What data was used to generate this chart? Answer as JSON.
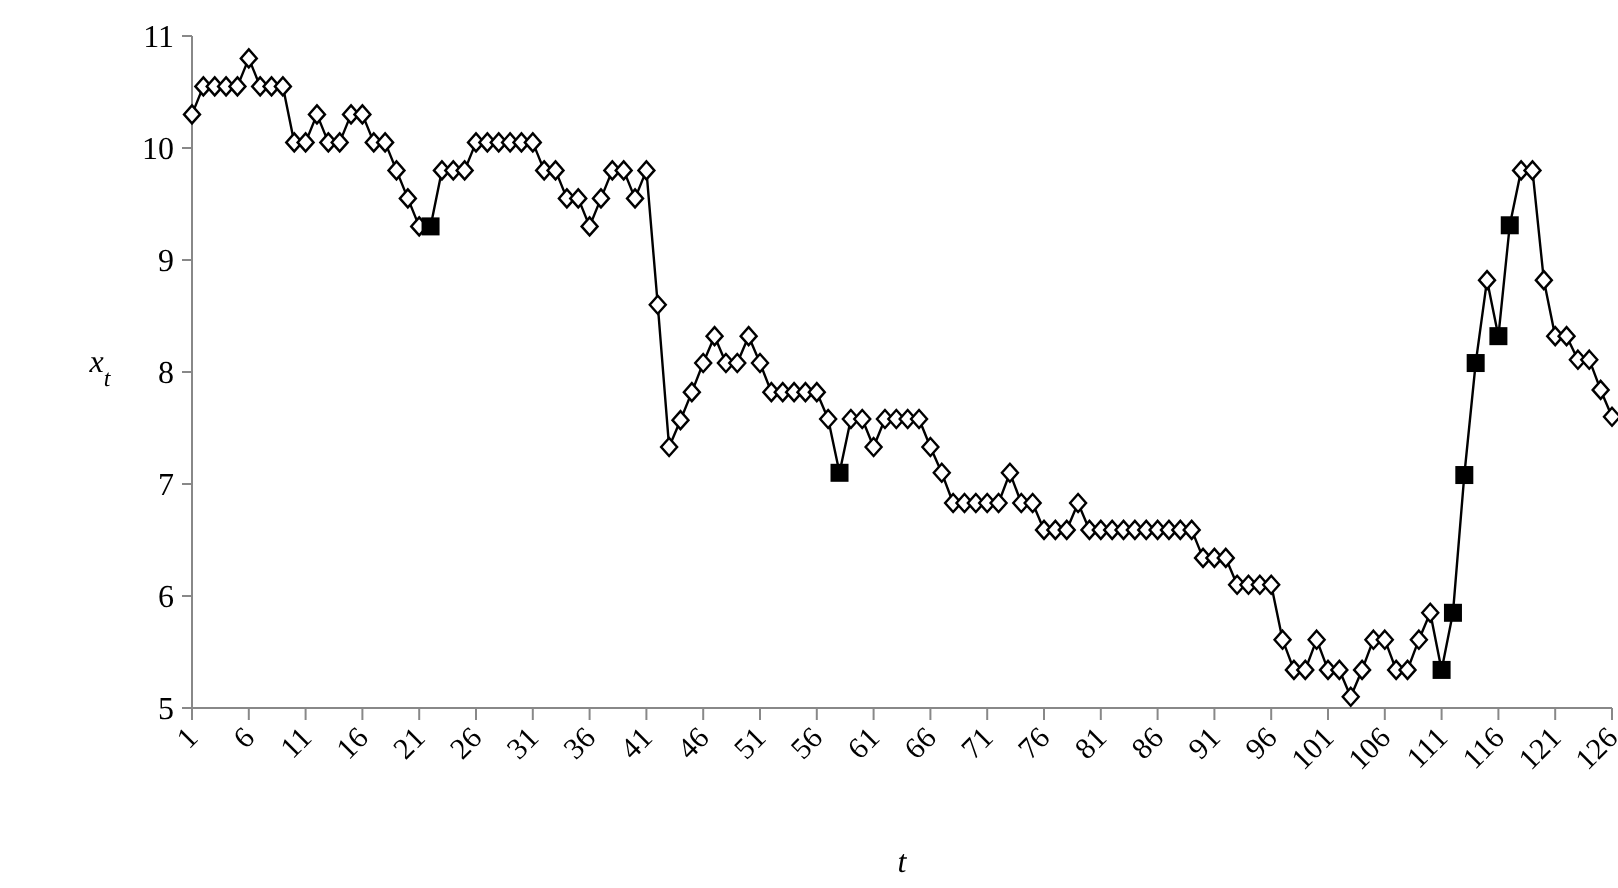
{
  "chart_data": {
    "type": "line",
    "xlabel": "t",
    "ylabel": "x$_{t}$",
    "xlim": [
      1,
      126
    ],
    "xticks": [
      1,
      6,
      11,
      16,
      21,
      26,
      31,
      36,
      41,
      46,
      51,
      56,
      61,
      66,
      71,
      76,
      81,
      86,
      91,
      96,
      101,
      106,
      111,
      116,
      121,
      126
    ],
    "ylim": [
      5,
      11
    ],
    "yticks": [
      5,
      6,
      7,
      8,
      9,
      10,
      11
    ],
    "grid": false,
    "line_style": "solid",
    "series": [
      {
        "type": "line",
        "color": "#000000",
        "marker": "diamond",
        "x": [
          1,
          2,
          3,
          4,
          5,
          6,
          7,
          8,
          9,
          10,
          11,
          12,
          13,
          14,
          15,
          16,
          17,
          18,
          19,
          20,
          21,
          22,
          23,
          24,
          25,
          26,
          27,
          28,
          29,
          30,
          31,
          32,
          33,
          34,
          35,
          36,
          37,
          38,
          39,
          40,
          41,
          42,
          43,
          44,
          45,
          46,
          47,
          48,
          49,
          50,
          51,
          52,
          53,
          54,
          55,
          56,
          57,
          58,
          59,
          60,
          61,
          62,
          63,
          64,
          65,
          66,
          67,
          68,
          69,
          70,
          71,
          72,
          73,
          74,
          75,
          76,
          77,
          78,
          79,
          80,
          81,
          82,
          83,
          84,
          85,
          86,
          87,
          88,
          89,
          90,
          91,
          92,
          93,
          94,
          95,
          96,
          97,
          98,
          99,
          100,
          101,
          102,
          103,
          104,
          105,
          106,
          107,
          108,
          109,
          110,
          111,
          112,
          113,
          114,
          115,
          116,
          117,
          118,
          119,
          120,
          121,
          122,
          123,
          124,
          125,
          126
        ],
        "values": [
          10.3,
          10.55,
          10.55,
          10.55,
          10.55,
          10.8,
          10.55,
          10.55,
          10.55,
          10.05,
          10.05,
          10.3,
          10.05,
          10.05,
          10.3,
          10.3,
          10.05,
          10.05,
          9.8,
          9.55,
          9.3,
          9.3,
          9.8,
          9.8,
          9.8,
          10.05,
          10.05,
          10.05,
          10.05,
          10.05,
          10.05,
          9.8,
          9.8,
          9.55,
          9.55,
          9.3,
          9.55,
          9.8,
          9.8,
          9.55,
          9.8,
          8.6,
          7.33,
          7.57,
          7.82,
          8.08,
          8.32,
          8.08,
          8.08,
          8.32,
          8.08,
          7.82,
          7.82,
          7.82,
          7.82,
          7.82,
          7.58,
          7.1,
          7.58,
          7.58,
          7.33,
          7.58,
          7.58,
          7.58,
          7.58,
          7.33,
          7.1,
          6.83,
          6.83,
          6.83,
          6.83,
          6.83,
          7.1,
          6.83,
          6.83,
          6.59,
          6.59,
          6.59,
          6.83,
          6.59,
          6.59,
          6.59,
          6.59,
          6.59,
          6.59,
          6.59,
          6.59,
          6.59,
          6.59,
          6.34,
          6.34,
          6.34,
          6.1,
          6.1,
          6.1,
          6.1,
          5.61,
          5.34,
          5.34,
          5.61,
          5.34,
          5.34,
          5.1,
          5.34,
          5.61,
          5.61,
          5.34,
          5.34,
          5.61,
          5.85,
          5.34,
          5.85,
          7.08,
          8.08,
          8.82,
          8.32,
          9.31,
          9.8,
          9.8,
          8.82,
          8.32,
          8.32,
          8.11,
          8.11,
          7.84,
          7.6
        ]
      },
      {
        "type": "scatter",
        "color": "#000000",
        "marker": "square",
        "x": [
          22,
          58,
          111,
          112,
          113,
          114,
          116,
          117
        ],
        "values": [
          9.3,
          7.1,
          5.34,
          5.85,
          7.08,
          8.08,
          8.32,
          9.31
        ]
      }
    ]
  }
}
